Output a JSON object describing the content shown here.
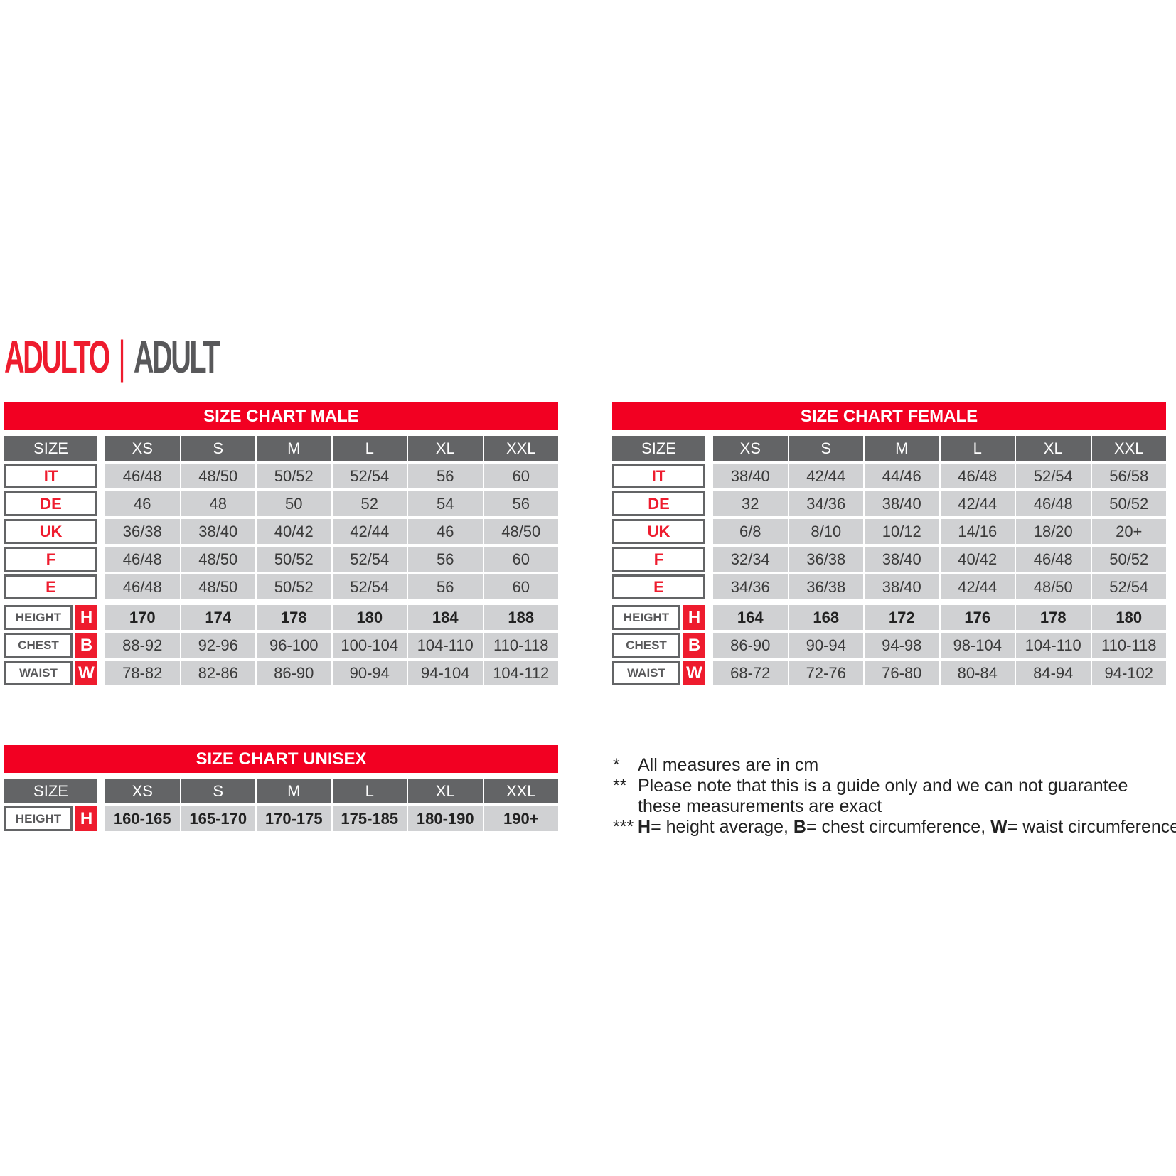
{
  "title": {
    "left": "ADULTO",
    "separator": "|",
    "right": "ADULT"
  },
  "colors": {
    "accent": "#f20022",
    "header": "#636466",
    "cell": "#d0d1d3"
  },
  "charts": {
    "male": {
      "title": "SIZE CHART MALE",
      "size_label": "SIZE",
      "sizes": [
        "XS",
        "S",
        "M",
        "L",
        "XL",
        "XXL"
      ],
      "codes": [
        {
          "label": "IT",
          "values": [
            "46/48",
            "48/50",
            "50/52",
            "52/54",
            "56",
            "60"
          ]
        },
        {
          "label": "DE",
          "values": [
            "46",
            "48",
            "50",
            "52",
            "54",
            "56"
          ]
        },
        {
          "label": "UK",
          "values": [
            "36/38",
            "38/40",
            "40/42",
            "42/44",
            "46",
            "48/50"
          ]
        },
        {
          "label": "F",
          "values": [
            "46/48",
            "48/50",
            "50/52",
            "52/54",
            "56",
            "60"
          ]
        },
        {
          "label": "E",
          "values": [
            "46/48",
            "48/50",
            "50/52",
            "52/54",
            "56",
            "60"
          ]
        }
      ],
      "measures": [
        {
          "label": "HEIGHT",
          "letter": "H",
          "bold": true,
          "values": [
            "170",
            "174",
            "178",
            "180",
            "184",
            "188"
          ]
        },
        {
          "label": "CHEST",
          "letter": "B",
          "values": [
            "88-92",
            "92-96",
            "96-100",
            "100-104",
            "104-110",
            "110-118"
          ]
        },
        {
          "label": "WAIST",
          "letter": "W",
          "values": [
            "78-82",
            "82-86",
            "86-90",
            "90-94",
            "94-104",
            "104-112"
          ]
        }
      ]
    },
    "female": {
      "title": "SIZE CHART FEMALE",
      "size_label": "SIZE",
      "sizes": [
        "XS",
        "S",
        "M",
        "L",
        "XL",
        "XXL"
      ],
      "codes": [
        {
          "label": "IT",
          "values": [
            "38/40",
            "42/44",
            "44/46",
            "46/48",
            "52/54",
            "56/58"
          ]
        },
        {
          "label": "DE",
          "values": [
            "32",
            "34/36",
            "38/40",
            "42/44",
            "46/48",
            "50/52"
          ]
        },
        {
          "label": "UK",
          "values": [
            "6/8",
            "8/10",
            "10/12",
            "14/16",
            "18/20",
            "20+"
          ]
        },
        {
          "label": "F",
          "values": [
            "32/34",
            "36/38",
            "38/40",
            "40/42",
            "46/48",
            "50/52"
          ]
        },
        {
          "label": "E",
          "values": [
            "34/36",
            "36/38",
            "38/40",
            "42/44",
            "48/50",
            "52/54"
          ]
        }
      ],
      "measures": [
        {
          "label": "HEIGHT",
          "letter": "H",
          "bold": true,
          "values": [
            "164",
            "168",
            "172",
            "176",
            "178",
            "180"
          ]
        },
        {
          "label": "CHEST",
          "letter": "B",
          "values": [
            "86-90",
            "90-94",
            "94-98",
            "98-104",
            "104-110",
            "110-118"
          ]
        },
        {
          "label": "WAIST",
          "letter": "W",
          "values": [
            "68-72",
            "72-76",
            "76-80",
            "80-84",
            "84-94",
            "94-102"
          ]
        }
      ]
    },
    "unisex": {
      "title": "SIZE CHART UNISEX",
      "size_label": "SIZE",
      "sizes": [
        "XS",
        "S",
        "M",
        "L",
        "XL",
        "XXL"
      ],
      "codes": [],
      "measures": [
        {
          "label": "HEIGHT",
          "letter": "H",
          "bold": true,
          "values": [
            "160-165",
            "165-170",
            "170-175",
            "175-185",
            "180-190",
            "190+"
          ]
        }
      ]
    }
  },
  "notes": [
    {
      "marker": "*",
      "text": "All measures are in cm"
    },
    {
      "marker": "**",
      "text": "Please note that this is a guide only and we can not guarantee"
    },
    {
      "marker": "",
      "text": "these measurements are exact"
    },
    {
      "marker": "***",
      "parts": [
        {
          "b": "H",
          "t": "= height average, "
        },
        {
          "b": "B",
          "t": "= chest circumference, "
        },
        {
          "b": "W",
          "t": "= waist circumference"
        }
      ]
    }
  ]
}
